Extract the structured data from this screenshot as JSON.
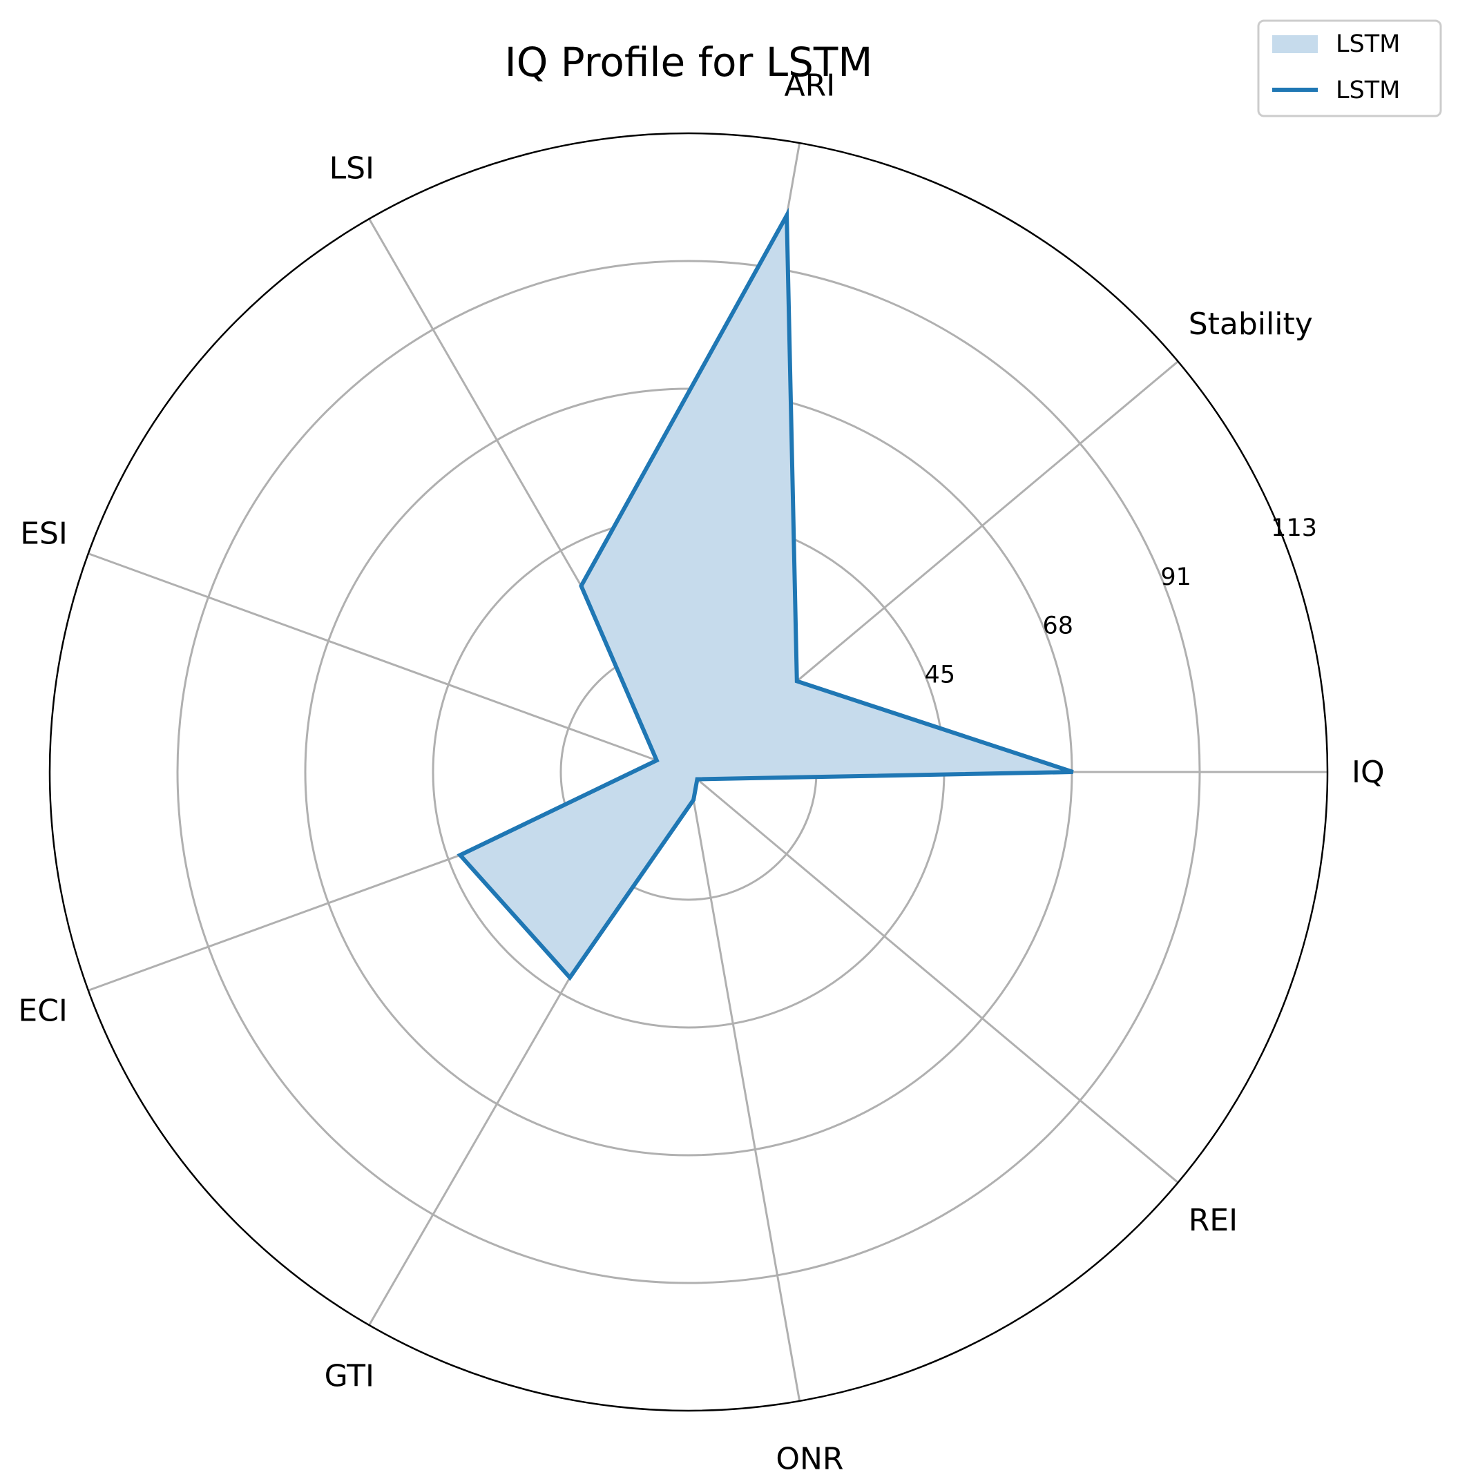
{
  "chart_data": {
    "type": "radar",
    "title": "IQ Profile for LSTM",
    "axes": [
      "IQ",
      "Stability",
      "ARI",
      "LSI",
      "ESI",
      "ECI",
      "GTI",
      "ONR",
      "REI"
    ],
    "radial_ticks": [
      "0",
      "23",
      "45",
      "68",
      "91",
      "113"
    ],
    "rlim": [
      0,
      113
    ],
    "grid": true,
    "legend_position": "top-right",
    "legend": [
      "LSTM",
      "LSTM"
    ],
    "series": [
      {
        "name": "LSTM",
        "values": [
          68,
          25,
          100,
          38,
          6,
          43,
          42,
          5,
          2
        ],
        "color": "#1f77b4",
        "fill_color": "#c6dbec"
      }
    ]
  }
}
